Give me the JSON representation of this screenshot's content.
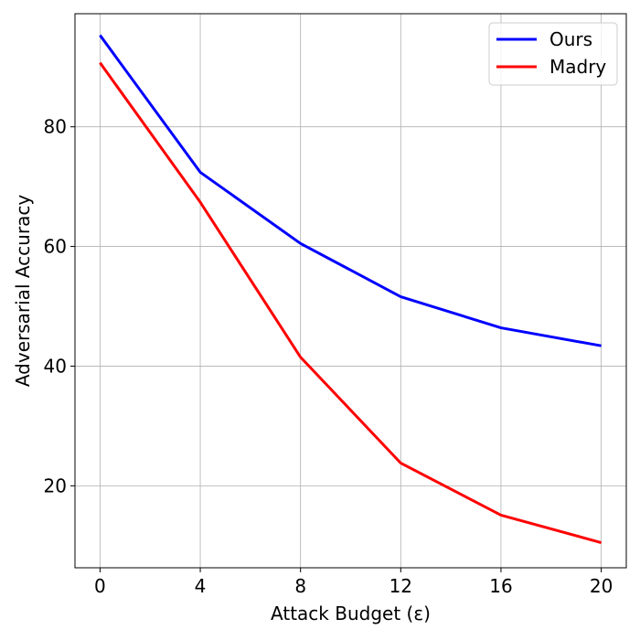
{
  "chart_data": {
    "type": "line",
    "title": "",
    "xlabel": "Attack Budget (ε)",
    "ylabel": "Adversarial Accuracy",
    "x": [
      0,
      4,
      8,
      12,
      16,
      20
    ],
    "xticks": [
      0,
      4,
      8,
      12,
      16,
      20
    ],
    "yticks": [
      20,
      40,
      60,
      80
    ],
    "xlim": [
      -1,
      21
    ],
    "ylim": [
      6.3,
      98.9
    ],
    "grid": true,
    "legend_position": "top-right",
    "series": [
      {
        "name": "Ours",
        "color": "#0000ff",
        "values": [
          95.3,
          72.4,
          60.5,
          51.6,
          46.4,
          43.4
        ]
      },
      {
        "name": "Madry",
        "color": "#ff0000",
        "values": [
          90.7,
          67.4,
          41.5,
          23.8,
          15.1,
          10.5
        ]
      }
    ]
  }
}
